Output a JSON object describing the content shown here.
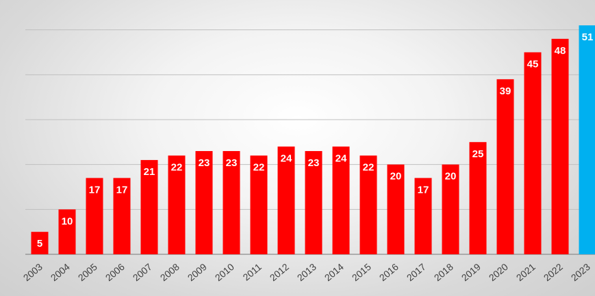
{
  "chart_data": {
    "type": "bar",
    "title": "",
    "xlabel": "",
    "ylabel": "",
    "ylim": [
      0,
      60
    ],
    "grid": true,
    "legend": "none",
    "categories": [
      "2003",
      "2004",
      "2005",
      "2006",
      "2007",
      "2008",
      "2009",
      "2010",
      "2011",
      "2012",
      "2013",
      "2014",
      "2015",
      "2016",
      "2017",
      "2018",
      "2019",
      "2020",
      "2021",
      "2022",
      "2023"
    ],
    "values": [
      5,
      10,
      17,
      17,
      21,
      22,
      23,
      23,
      22,
      24,
      23,
      24,
      22,
      20,
      17,
      20,
      25,
      39,
      45,
      48,
      51
    ],
    "colors": {
      "default_bar": "#ff0000",
      "highlight_bar": "#00b0f0",
      "highlight_category": "2023",
      "gridline": "#bfbfbf",
      "axis": "#8c8c8c"
    }
  }
}
